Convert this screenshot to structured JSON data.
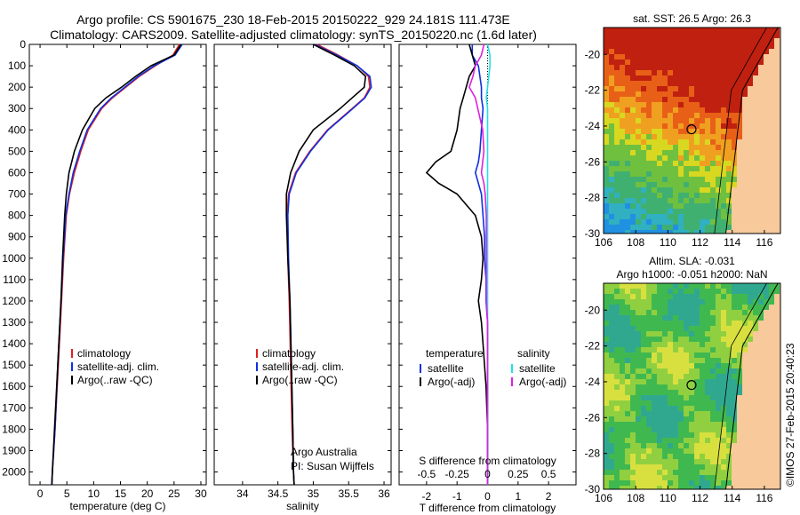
{
  "header": {
    "line1": "Argo profile: CS 5901675_230 18-Feb-2015 20150222_929 24.181S 111.473E",
    "line2": "Climatology: CARS2009. Satellite-adjusted climatology: synTS_20150220.nc (1.6d later)"
  },
  "credits": {
    "argo_line1": "Argo Australia",
    "argo_line2": "PI: Susan Wijffels",
    "imos": "©IMOS 27-Feb-2015 20:40:23"
  },
  "colors": {
    "climatology": "#e02020",
    "satellite": "#1030e0",
    "argo": "#000000",
    "sal_satellite": "#20e0e8",
    "sal_argo": "#e020e0",
    "land": "#f7c99b"
  },
  "chart_data": [
    {
      "type": "line",
      "xlabel": "temperature (deg C)",
      "ylabel": "",
      "xlim": [
        -2,
        31
      ],
      "ylim": [
        2060,
        0
      ],
      "xticks": [
        "0",
        "5",
        "10",
        "15",
        "20",
        "25",
        "30"
      ],
      "yticks": [
        "0",
        "100",
        "200",
        "300",
        "400",
        "500",
        "600",
        "700",
        "800",
        "900",
        "1000",
        "1100",
        "1200",
        "1300",
        "1400",
        "1500",
        "1600",
        "1700",
        "1800",
        "1900",
        "2000"
      ],
      "depth": [
        0,
        50,
        100,
        150,
        200,
        250,
        300,
        400,
        500,
        600,
        700,
        800,
        1000,
        1200,
        1500,
        1800,
        2000,
        2060
      ],
      "series": [
        {
          "name": "climatology",
          "values": [
            26.0,
            24.8,
            21.5,
            18.5,
            16.0,
            13.5,
            11.5,
            9.0,
            7.6,
            6.4,
            5.5,
            4.9,
            4.4,
            4.0,
            3.4,
            2.8,
            2.3,
            2.2
          ]
        },
        {
          "name": "satellite-adj. clim.",
          "values": [
            26.5,
            25.2,
            21.3,
            18.3,
            15.8,
            13.3,
            11.3,
            8.8,
            7.4,
            6.2,
            5.4,
            4.8,
            4.3,
            3.9,
            3.3,
            2.8,
            2.3,
            2.2
          ]
        },
        {
          "name": "Argo(..raw -QC)",
          "values": [
            26.3,
            25.0,
            20.7,
            17.8,
            15.2,
            12.3,
            10.2,
            7.9,
            6.4,
            5.4,
            4.9,
            4.6,
            4.2,
            3.9,
            3.3,
            2.7,
            2.3,
            2.2
          ]
        }
      ]
    },
    {
      "type": "line",
      "xlabel": "salinity",
      "ylabel": "",
      "xlim": [
        33.6,
        36.1
      ],
      "ylim": [
        2060,
        0
      ],
      "xticks": [
        "34",
        "34.5",
        "35",
        "35.5",
        "36"
      ],
      "depth": [
        0,
        50,
        100,
        150,
        200,
        250,
        300,
        400,
        500,
        600,
        700,
        800,
        1000,
        1200,
        1500,
        1800,
        2000,
        2060
      ],
      "series": [
        {
          "name": "climatology",
          "values": [
            35.05,
            35.35,
            35.62,
            35.78,
            35.8,
            35.72,
            35.55,
            35.2,
            34.95,
            34.75,
            34.65,
            34.63,
            34.64,
            34.66,
            34.68,
            34.7,
            34.72,
            34.73
          ]
        },
        {
          "name": "satellite-adj. clim.",
          "values": [
            35.02,
            35.33,
            35.62,
            35.8,
            35.82,
            35.73,
            35.56,
            35.21,
            34.96,
            34.76,
            34.66,
            34.64,
            34.65,
            34.67,
            34.69,
            34.71,
            34.72,
            34.73
          ]
        },
        {
          "name": "Argo(..raw -QC)",
          "values": [
            35.0,
            35.3,
            35.58,
            35.74,
            35.72,
            35.55,
            35.38,
            35.0,
            34.8,
            34.68,
            34.62,
            34.62,
            34.64,
            34.67,
            34.69,
            34.71,
            34.72,
            34.73
          ]
        }
      ]
    },
    {
      "type": "line",
      "xlabel": "T difference from climatology",
      "x2label": "S difference from climatology",
      "xlim": [
        -2.9,
        2.9
      ],
      "ylim": [
        2060,
        0
      ],
      "xticks": [
        "-2",
        "-1",
        "0",
        "1",
        "2"
      ],
      "x2ticks": [
        "-0.5",
        "-0.25",
        "0",
        "0.25",
        "0.5"
      ],
      "legend_titles": [
        "temperature",
        "salinity"
      ],
      "depth": [
        0,
        50,
        100,
        150,
        200,
        250,
        300,
        400,
        500,
        550,
        600,
        650,
        700,
        800,
        900,
        1000,
        1100,
        1200,
        1300,
        1400,
        1500,
        1600,
        1800,
        2000,
        2060
      ],
      "series": [
        {
          "name": "satellite",
          "values": [
            -0.5,
            -0.5,
            -0.3,
            -0.25,
            -0.2,
            -0.2,
            -0.15,
            -0.2,
            -0.25,
            -0.3,
            -0.4,
            -0.3,
            -0.2,
            -0.15,
            -0.1,
            -0.1,
            -0.05,
            -0.05,
            0,
            0,
            0,
            0,
            0,
            0,
            0
          ]
        },
        {
          "name": "Argo(-adj)",
          "values": [
            -0.6,
            -0.5,
            -0.4,
            -0.6,
            -0.7,
            -0.8,
            -0.9,
            -1.0,
            -1.2,
            -1.7,
            -2.0,
            -1.6,
            -1.0,
            -0.4,
            -0.2,
            -0.15,
            -0.2,
            -0.3,
            -0.2,
            -0.15,
            -0.1,
            -0.05,
            0,
            0,
            0
          ]
        },
        {
          "name": "satellite",
          "values": [
            0.0,
            0.02,
            0.02,
            0.01,
            0.0,
            -0.01,
            0.0,
            0.0,
            0.0,
            0.0,
            0.0,
            0.0,
            0.0,
            0.0,
            0.0,
            0.0,
            0.0,
            0.0,
            0.0,
            0.0,
            0.0,
            0.0,
            0.0,
            0.0,
            0.0
          ]
        },
        {
          "name": "Argo(-adj)",
          "values": [
            -0.03,
            -0.05,
            -0.1,
            -0.12,
            -0.15,
            -0.1,
            -0.08,
            -0.04,
            -0.03,
            -0.04,
            -0.05,
            -0.03,
            -0.02,
            -0.01,
            -0.01,
            -0.01,
            -0.01,
            -0.01,
            0.0,
            0.0,
            0.0,
            0.0,
            0.0,
            0.0,
            0.0
          ]
        }
      ]
    },
    {
      "type": "heatmap",
      "title": "sat. SST: 26.5 Argo: 26.3",
      "xlim": [
        106,
        117
      ],
      "ylim": [
        -30,
        -18.5
      ],
      "xticks": [
        "106",
        "108",
        "110",
        "112",
        "114",
        "116"
      ],
      "yticks": [
        "-20",
        "-22",
        "-24",
        "-26",
        "-28",
        "-30"
      ],
      "marker": {
        "lon": 111.47,
        "lat": -24.18
      }
    },
    {
      "type": "heatmap",
      "title": "Altim. SLA: -0.031",
      "subtitle": "Argo h1000: -0.051 h2000: NaN",
      "xlim": [
        106,
        117
      ],
      "ylim": [
        -30,
        -18.5
      ],
      "xticks": [
        "106",
        "108",
        "110",
        "112",
        "114",
        "116"
      ],
      "yticks": [
        "-20",
        "-22",
        "-24",
        "-26",
        "-28",
        "-30"
      ],
      "marker": {
        "lon": 111.47,
        "lat": -24.18
      }
    }
  ]
}
